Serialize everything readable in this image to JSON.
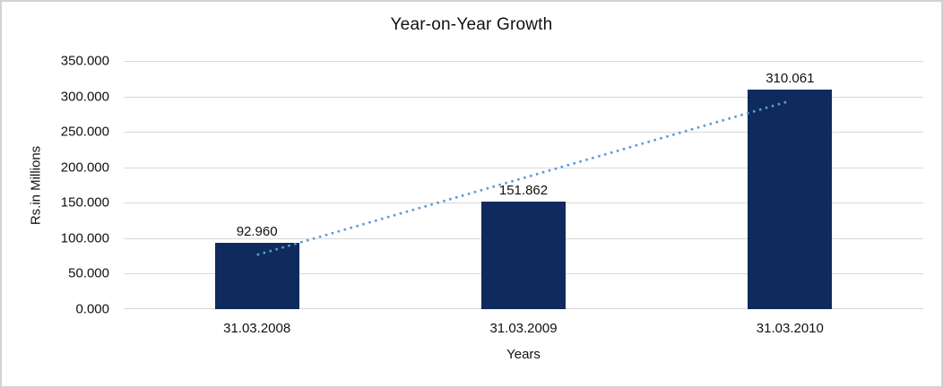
{
  "chart_data": {
    "type": "bar",
    "title": "Year-on-Year Growth",
    "xlabel": "Years",
    "ylabel": "Rs.in Millions",
    "categories": [
      "31.03.2008",
      "31.03.2009",
      "31.03.2010"
    ],
    "values": [
      92.96,
      151.862,
      310.061
    ],
    "value_labels": [
      "92.960",
      "151.862",
      "310.061"
    ],
    "ylim": [
      0,
      350
    ],
    "yticks": [
      {
        "value": 0,
        "label": "0.000"
      },
      {
        "value": 50,
        "label": "50.000"
      },
      {
        "value": 100,
        "label": "100.000"
      },
      {
        "value": 150,
        "label": "150.000"
      },
      {
        "value": 200,
        "label": "200.000"
      },
      {
        "value": 250,
        "label": "250.000"
      },
      {
        "value": 300,
        "label": "300.000"
      },
      {
        "value": 350,
        "label": "350.000"
      }
    ],
    "grid": true,
    "legend": false,
    "trendline": {
      "type": "linear",
      "style": "dotted"
    },
    "colors": {
      "bar": "#0F2A5C",
      "trendline": "#5B9BD5",
      "gridline": "#D9D9D9",
      "text": "#111111",
      "background": "#FFFFFF",
      "frame_border": "#D2D2D2"
    }
  }
}
